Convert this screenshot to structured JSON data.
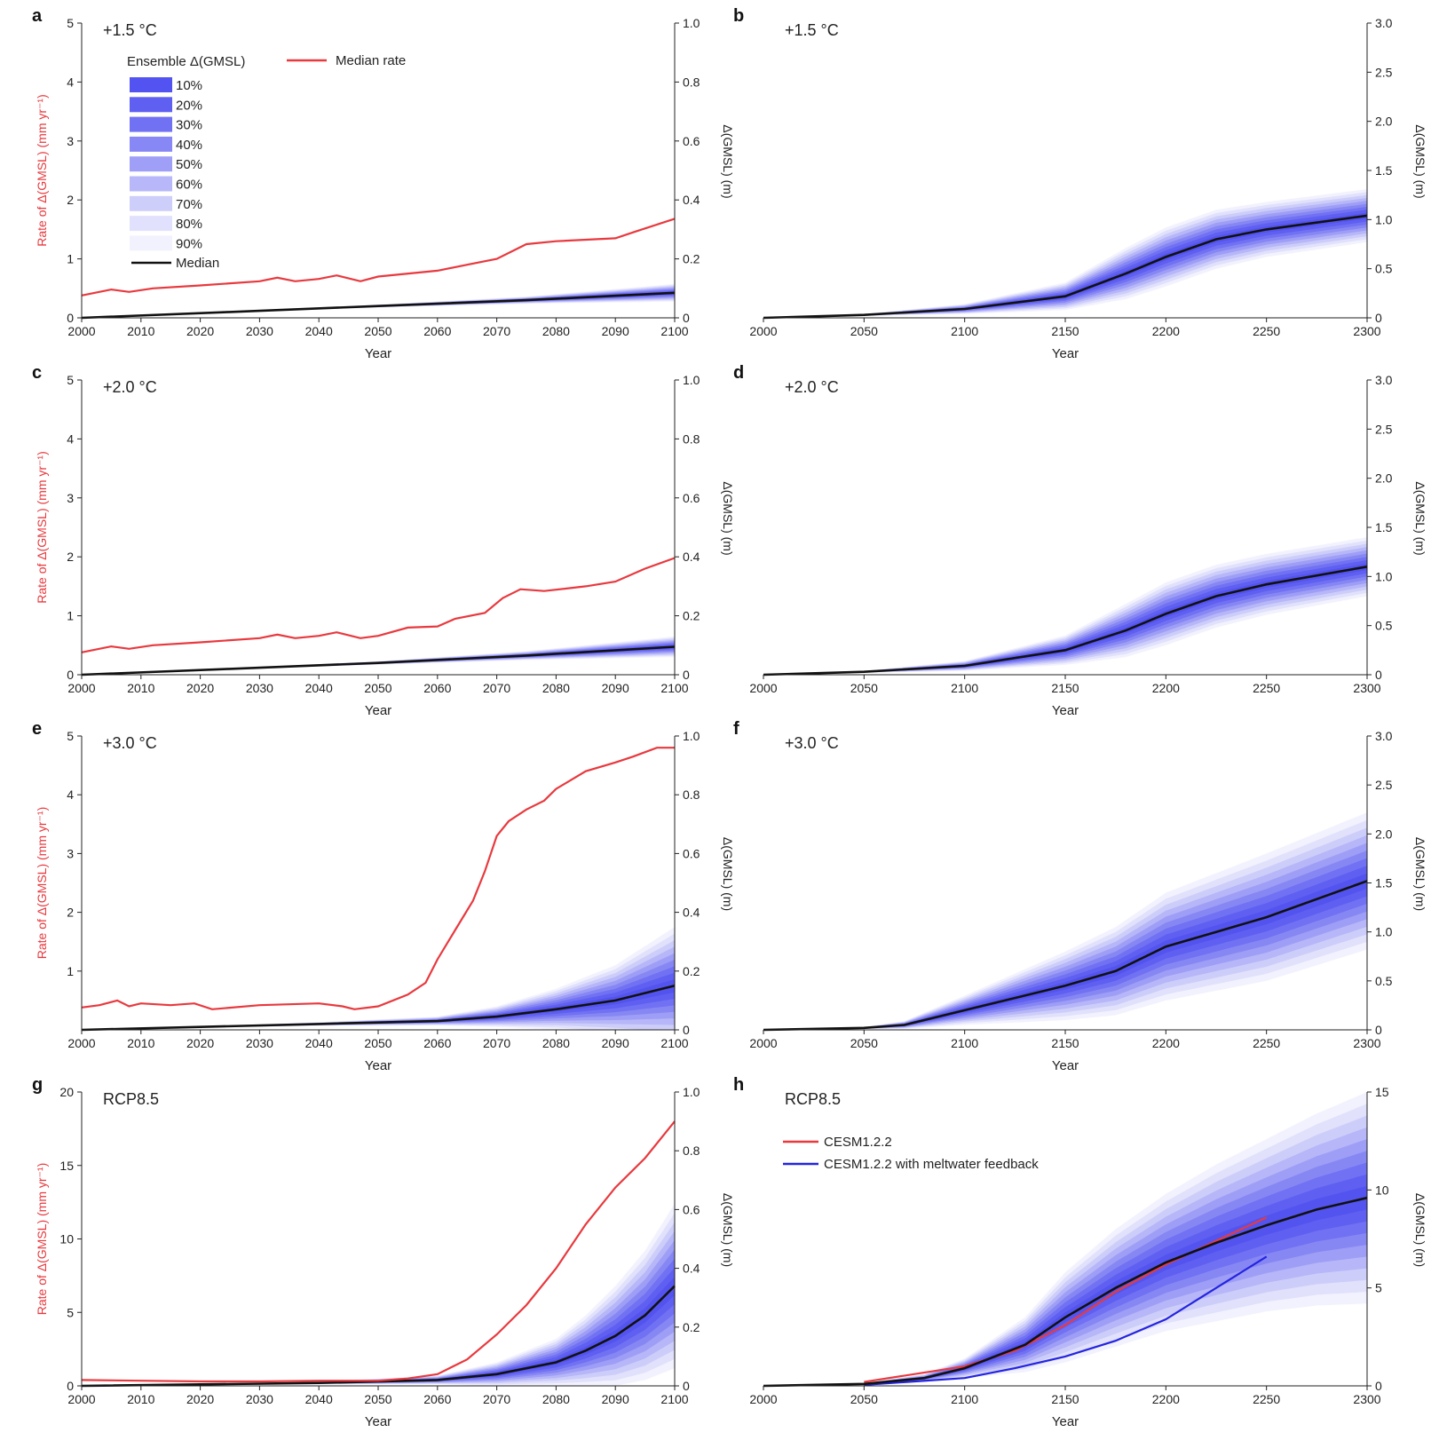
{
  "figure": {
    "legend": {
      "ensemble_title": "Ensemble Δ(GMSL)",
      "median_rate_label": "Median rate",
      "median_label": "Median",
      "percent_labels": [
        "10%",
        "20%",
        "30%",
        "40%",
        "50%",
        "60%",
        "70%",
        "80%",
        "90%"
      ]
    },
    "colors": {
      "rate": "#e8393e",
      "median": "#111111",
      "cesm": "#e8393e",
      "cesm_feedback": "#2424e0",
      "band_base": "#4a4af0"
    }
  },
  "chart_data": [
    {
      "panel": "a",
      "title": "+1.5 °C",
      "type": "line",
      "xlabel": "Year",
      "ylabel": "Rate of Δ(GMSL) (mm yr⁻¹)",
      "y2label": "Δ(GMSL) (m)",
      "xlim": [
        2000,
        2100
      ],
      "ylim": [
        0,
        5
      ],
      "y2lim": [
        0,
        1.0
      ],
      "xticks": [
        2000,
        2010,
        2020,
        2030,
        2040,
        2050,
        2060,
        2070,
        2080,
        2090,
        2100
      ],
      "yticks": [
        0,
        1,
        2,
        3,
        4,
        5
      ],
      "yticklabels": [
        "0",
        "1",
        "2",
        "3",
        "4",
        "5"
      ],
      "y2ticks": [
        0,
        0.2,
        0.4,
        0.6,
        0.8,
        1.0
      ],
      "y2ticklabels": [
        "0",
        "0.2",
        "0.4",
        "0.6",
        "0.8",
        "1.0"
      ],
      "rate": {
        "name": "Median rate",
        "x": [
          2000,
          2005,
          2008,
          2012,
          2020,
          2030,
          2033,
          2036,
          2040,
          2043,
          2047,
          2050,
          2060,
          2065,
          2070,
          2075,
          2080,
          2090,
          2093,
          2100
        ],
        "y": [
          0.38,
          0.48,
          0.44,
          0.5,
          0.55,
          0.62,
          0.68,
          0.62,
          0.66,
          0.72,
          0.62,
          0.7,
          0.8,
          0.9,
          1.0,
          1.25,
          1.3,
          1.35,
          1.45,
          1.68
        ]
      },
      "median": {
        "name": "Median",
        "x": [
          2000,
          2025,
          2050,
          2075,
          2100
        ],
        "y": [
          0,
          0.02,
          0.04,
          0.06,
          0.085
        ]
      },
      "spread": {
        "x": [
          2000,
          2025,
          2050,
          2075,
          2100
        ],
        "half": [
          0,
          0.002,
          0.005,
          0.012,
          0.03
        ]
      }
    },
    {
      "panel": "b",
      "title": "+1.5 °C",
      "type": "line",
      "xlabel": "Year",
      "ylabel": "",
      "y2label": "Δ(GMSL) (m)",
      "xlim": [
        2000,
        2300
      ],
      "y2lim": [
        0,
        3.0
      ],
      "xticks": [
        2000,
        2050,
        2100,
        2150,
        2200,
        2250,
        2300
      ],
      "y2ticks": [
        0,
        0.5,
        1.0,
        1.5,
        2.0,
        2.5,
        3.0
      ],
      "y2ticklabels": [
        "0",
        "0.5",
        "1.0",
        "1.5",
        "2.0",
        "2.5",
        "3.0"
      ],
      "median": {
        "name": "Median",
        "x": [
          2000,
          2050,
          2100,
          2150,
          2180,
          2200,
          2225,
          2250,
          2300
        ],
        "y": [
          0,
          0.03,
          0.09,
          0.22,
          0.45,
          0.62,
          0.8,
          0.9,
          1.04
        ]
      },
      "spread": {
        "x": [
          2000,
          2050,
          2100,
          2150,
          2180,
          2200,
          2225,
          2250,
          2300
        ],
        "half": [
          0,
          0.01,
          0.05,
          0.14,
          0.26,
          0.3,
          0.3,
          0.28,
          0.27
        ]
      }
    },
    {
      "panel": "c",
      "title": "+2.0 °C",
      "type": "line",
      "xlabel": "Year",
      "ylabel": "Rate of Δ(GMSL) (mm yr⁻¹)",
      "y2label": "Δ(GMSL) (m)",
      "xlim": [
        2000,
        2100
      ],
      "ylim": [
        0,
        5
      ],
      "y2lim": [
        0,
        1.0
      ],
      "xticks": [
        2000,
        2010,
        2020,
        2030,
        2040,
        2050,
        2060,
        2070,
        2080,
        2090,
        2100
      ],
      "yticks": [
        0,
        1,
        2,
        3,
        4,
        5
      ],
      "yticklabels": [
        "0",
        "1",
        "2",
        "3",
        "4",
        "5"
      ],
      "y2ticks": [
        0,
        0.2,
        0.4,
        0.6,
        0.8,
        1.0
      ],
      "y2ticklabels": [
        "0",
        "0.2",
        "0.4",
        "0.6",
        "0.8",
        "1.0"
      ],
      "rate": {
        "name": "Median rate",
        "x": [
          2000,
          2005,
          2008,
          2012,
          2020,
          2030,
          2033,
          2036,
          2040,
          2043,
          2047,
          2050,
          2055,
          2060,
          2063,
          2068,
          2071,
          2074,
          2078,
          2085,
          2090,
          2095,
          2100
        ],
        "y": [
          0.38,
          0.48,
          0.44,
          0.5,
          0.55,
          0.62,
          0.68,
          0.62,
          0.66,
          0.72,
          0.62,
          0.66,
          0.8,
          0.82,
          0.95,
          1.05,
          1.3,
          1.45,
          1.42,
          1.5,
          1.58,
          1.8,
          1.98
        ]
      },
      "median": {
        "name": "Median",
        "x": [
          2000,
          2025,
          2050,
          2075,
          2100
        ],
        "y": [
          0,
          0.02,
          0.04,
          0.065,
          0.095
        ]
      },
      "spread": {
        "x": [
          2000,
          2025,
          2050,
          2075,
          2100
        ],
        "half": [
          0,
          0.002,
          0.006,
          0.015,
          0.035
        ]
      }
    },
    {
      "panel": "d",
      "title": "+2.0 °C",
      "type": "line",
      "xlabel": "Year",
      "ylabel": "",
      "y2label": "Δ(GMSL) (m)",
      "xlim": [
        2000,
        2300
      ],
      "y2lim": [
        0,
        3.0
      ],
      "xticks": [
        2000,
        2050,
        2100,
        2150,
        2200,
        2250,
        2300
      ],
      "y2ticks": [
        0,
        0.5,
        1.0,
        1.5,
        2.0,
        2.5,
        3.0
      ],
      "y2ticklabels": [
        "0",
        "0.5",
        "1.0",
        "1.5",
        "2.0",
        "2.5",
        "3.0"
      ],
      "median": {
        "name": "Median",
        "x": [
          2000,
          2050,
          2100,
          2150,
          2180,
          2200,
          2225,
          2250,
          2300
        ],
        "y": [
          0,
          0.03,
          0.09,
          0.25,
          0.45,
          0.62,
          0.8,
          0.92,
          1.1
        ]
      },
      "spread": {
        "x": [
          2000,
          2050,
          2100,
          2150,
          2180,
          2200,
          2225,
          2250,
          2300
        ],
        "half": [
          0,
          0.01,
          0.05,
          0.15,
          0.27,
          0.32,
          0.32,
          0.31,
          0.3
        ]
      }
    },
    {
      "panel": "e",
      "title": "+3.0 °C",
      "type": "line",
      "xlabel": "Year",
      "ylabel": "Rate of Δ(GMSL) (mm yr⁻¹)",
      "y2label": "Δ(GMSL) (m)",
      "xlim": [
        2000,
        2100
      ],
      "ylim": [
        0,
        5
      ],
      "y2lim": [
        0,
        1.0
      ],
      "xticks": [
        2000,
        2010,
        2020,
        2030,
        2040,
        2050,
        2060,
        2070,
        2080,
        2090,
        2100
      ],
      "yticks": [
        1,
        2,
        3,
        4,
        5
      ],
      "yticklabels": [
        "1",
        "2",
        "3",
        "4",
        "5"
      ],
      "y2ticks": [
        0,
        0.2,
        0.4,
        0.6,
        0.8,
        1.0
      ],
      "y2ticklabels": [
        "0",
        "0.2",
        "0.4",
        "0.6",
        "0.8",
        "1.0"
      ],
      "rate": {
        "name": "Median rate",
        "x": [
          2000,
          2003,
          2006,
          2008,
          2010,
          2015,
          2019,
          2022,
          2030,
          2040,
          2044,
          2046,
          2050,
          2055,
          2058,
          2060,
          2063,
          2066,
          2068,
          2070,
          2072,
          2075,
          2078,
          2080,
          2085,
          2090,
          2093,
          2097,
          2100
        ],
        "y": [
          0.38,
          0.42,
          0.5,
          0.4,
          0.45,
          0.42,
          0.45,
          0.35,
          0.42,
          0.45,
          0.4,
          0.35,
          0.4,
          0.6,
          0.8,
          1.2,
          1.7,
          2.2,
          2.7,
          3.3,
          3.55,
          3.75,
          3.9,
          4.1,
          4.4,
          4.55,
          4.65,
          4.8,
          4.8
        ]
      },
      "median": {
        "name": "Median",
        "x": [
          2000,
          2020,
          2040,
          2060,
          2070,
          2080,
          2090,
          2100
        ],
        "y": [
          0,
          0.01,
          0.02,
          0.03,
          0.045,
          0.07,
          0.1,
          0.15
        ]
      },
      "spread": {
        "x": [
          2000,
          2020,
          2040,
          2060,
          2070,
          2080,
          2090,
          2100
        ],
        "half": [
          0,
          0.002,
          0.006,
          0.015,
          0.035,
          0.07,
          0.12,
          0.2
        ]
      }
    },
    {
      "panel": "f",
      "title": "+3.0 °C",
      "type": "line",
      "xlabel": "Year",
      "ylabel": "",
      "y2label": "Δ(GMSL) (m)",
      "xlim": [
        2000,
        2300
      ],
      "y2lim": [
        0,
        3.0
      ],
      "xticks": [
        2000,
        2050,
        2100,
        2150,
        2200,
        2250,
        2300
      ],
      "y2ticks": [
        0,
        0.5,
        1.0,
        1.5,
        2.0,
        2.5,
        3.0
      ],
      "y2ticklabels": [
        "0",
        "0.5",
        "1.0",
        "1.5",
        "2.0",
        "2.5",
        "3.0"
      ],
      "median": {
        "name": "Median",
        "x": [
          2000,
          2050,
          2070,
          2100,
          2150,
          2175,
          2200,
          2225,
          2250,
          2300
        ],
        "y": [
          0,
          0.02,
          0.05,
          0.2,
          0.45,
          0.6,
          0.85,
          1.0,
          1.15,
          1.52
        ]
      },
      "spread": {
        "x": [
          2000,
          2050,
          2070,
          2100,
          2150,
          2175,
          2200,
          2225,
          2250,
          2300
        ],
        "half": [
          0,
          0.01,
          0.04,
          0.15,
          0.35,
          0.45,
          0.55,
          0.6,
          0.65,
          0.7
        ]
      }
    },
    {
      "panel": "g",
      "title": "RCP8.5",
      "type": "line",
      "xlabel": "Year",
      "ylabel": "Rate of Δ(GMSL) (mm yr⁻¹)",
      "y2label": "Δ(GMSL) (m)",
      "xlim": [
        2000,
        2100
      ],
      "ylim": [
        0,
        20
      ],
      "y2lim": [
        0,
        1.0
      ],
      "xticks": [
        2000,
        2010,
        2020,
        2030,
        2040,
        2050,
        2060,
        2070,
        2080,
        2090,
        2100
      ],
      "yticks": [
        0,
        5,
        10,
        15,
        20
      ],
      "yticklabels": [
        "0",
        "5",
        "10",
        "15",
        "20"
      ],
      "y2ticks": [
        0,
        0.2,
        0.4,
        0.6,
        0.8,
        1.0
      ],
      "y2ticklabels": [
        "0",
        "0.2",
        "0.4",
        "0.6",
        "0.8",
        "1.0"
      ],
      "rate": {
        "name": "Median rate",
        "x": [
          2000,
          2010,
          2020,
          2030,
          2040,
          2050,
          2055,
          2060,
          2065,
          2070,
          2075,
          2080,
          2085,
          2090,
          2095,
          2100
        ],
        "y": [
          0.4,
          0.35,
          0.3,
          0.3,
          0.35,
          0.35,
          0.5,
          0.8,
          1.8,
          3.5,
          5.5,
          8.0,
          11.0,
          13.5,
          15.5,
          18.0
        ]
      },
      "median": {
        "name": "Median",
        "x": [
          2000,
          2040,
          2060,
          2070,
          2080,
          2085,
          2090,
          2095,
          2100
        ],
        "y": [
          0,
          0.01,
          0.02,
          0.04,
          0.08,
          0.12,
          0.17,
          0.24,
          0.34
        ]
      },
      "spread": {
        "x": [
          2000,
          2040,
          2060,
          2070,
          2080,
          2085,
          2090,
          2095,
          2100
        ],
        "half": [
          0,
          0.005,
          0.015,
          0.04,
          0.08,
          0.12,
          0.17,
          0.22,
          0.28
        ]
      }
    },
    {
      "panel": "h",
      "title": "RCP8.5",
      "type": "line",
      "xlabel": "Year",
      "ylabel": "",
      "y2label": "Δ(GMSL) (m)",
      "xlim": [
        2000,
        2300
      ],
      "y2lim": [
        0,
        15
      ],
      "xticks": [
        2000,
        2050,
        2100,
        2150,
        2200,
        2250,
        2300
      ],
      "y2ticks": [
        0,
        5,
        10,
        15
      ],
      "y2ticklabels": [
        "0",
        "5",
        "10",
        "15"
      ],
      "median": {
        "name": "Median",
        "x": [
          2000,
          2050,
          2080,
          2100,
          2130,
          2150,
          2175,
          2200,
          2225,
          2250,
          2275,
          2300
        ],
        "y": [
          0,
          0.1,
          0.4,
          0.9,
          2.1,
          3.5,
          5.0,
          6.3,
          7.3,
          8.2,
          9.0,
          9.6
        ]
      },
      "spread": {
        "x": [
          2000,
          2050,
          2080,
          2100,
          2130,
          2150,
          2175,
          2200,
          2225,
          2250,
          2275,
          2300
        ],
        "half": [
          0,
          0.05,
          0.2,
          0.5,
          1.4,
          2.3,
          3.0,
          3.5,
          4.0,
          4.4,
          4.9,
          5.4
        ]
      },
      "extra_series": [
        {
          "name": "CESM1.2.2",
          "color_key": "cesm",
          "x": [
            2050,
            2100,
            2125,
            2150,
            2175,
            2200,
            2225,
            2250
          ],
          "y": [
            0.2,
            1.0,
            1.8,
            3.1,
            4.8,
            6.2,
            7.4,
            8.6
          ]
        },
        {
          "name": "CESM1.2.2 with meltwater feedback",
          "color_key": "cesm_feedback",
          "x": [
            2050,
            2100,
            2125,
            2150,
            2175,
            2200,
            2225,
            2250
          ],
          "y": [
            0.05,
            0.4,
            0.9,
            1.5,
            2.3,
            3.4,
            5.0,
            6.6
          ]
        }
      ]
    }
  ]
}
